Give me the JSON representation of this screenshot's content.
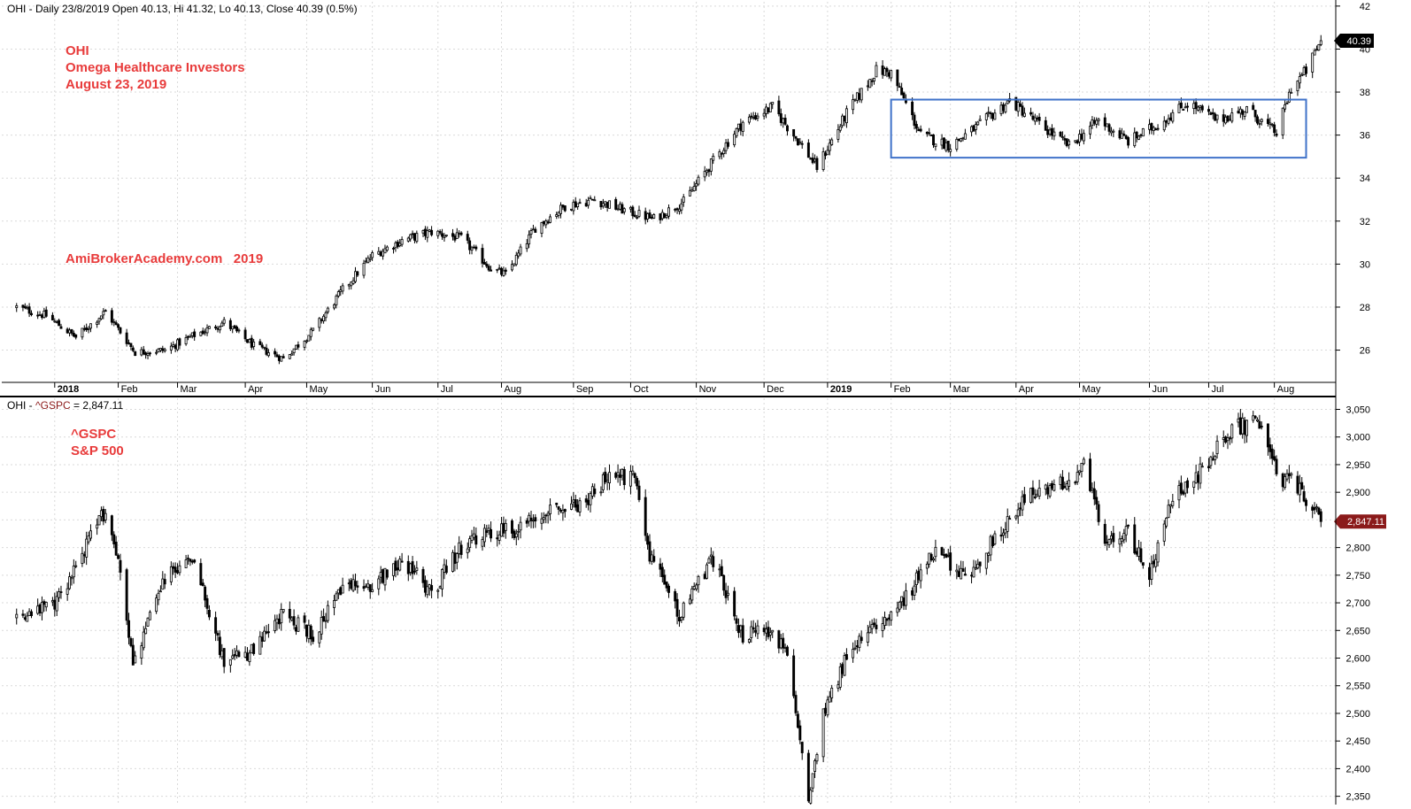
{
  "colors": {
    "background": "#ffffff",
    "grid": "#d9d9d9",
    "candle": "#000000",
    "annotation": "#e83b3b",
    "box": "#3f72c9",
    "last_price_bg": "#000000",
    "gspc_price_bg": "#8b1a1a",
    "divider": "#000000"
  },
  "chart_data": [
    {
      "type": "line",
      "chart_style": "candlestick",
      "header": "OHI - Daily 23/8/2019 Open 40.13, Hi 41.32, Lo 40.13, Close 40.39 (0.5%)",
      "annotations": [
        "OHI",
        "Omega Healthcare Investors",
        "August 23, 2019",
        "AmiBrokerAcademy.com   2019"
      ],
      "last_price_label": "40.39",
      "ylim": [
        24.5,
        42.2
      ],
      "ytick_labels": [
        "26",
        "28",
        "30",
        "32",
        "34",
        "36",
        "38",
        "40",
        "42"
      ],
      "ytick_values": [
        26,
        28,
        30,
        32,
        34,
        36,
        38,
        40,
        42
      ],
      "xtick_labels": [
        "2018",
        "Feb",
        "Mar",
        "Apr",
        "May",
        "Jun",
        "Jul",
        "Aug",
        "Sep",
        "Oct",
        "Nov",
        "Dec",
        "2019",
        "Feb",
        "Mar",
        "Apr",
        "May",
        "Jun",
        "Jul",
        "Aug"
      ],
      "xtick_dates": [
        "2018-01-02",
        "2018-02-01",
        "2018-03-01",
        "2018-04-02",
        "2018-05-01",
        "2018-06-01",
        "2018-07-02",
        "2018-08-01",
        "2018-09-04",
        "2018-10-01",
        "2018-11-01",
        "2018-12-03",
        "2019-01-02",
        "2019-02-01",
        "2019-03-01",
        "2019-04-01",
        "2019-05-01",
        "2019-06-03",
        "2019-07-01",
        "2019-08-01"
      ],
      "bold_xtick_labels": [
        "2018",
        "2019"
      ],
      "grid": true,
      "x": [
        "2017-12-15",
        "2017-12-29",
        "2018-01-12",
        "2018-01-26",
        "2018-02-09",
        "2018-02-23",
        "2018-03-09",
        "2018-03-23",
        "2018-04-06",
        "2018-04-20",
        "2018-05-04",
        "2018-05-18",
        "2018-06-01",
        "2018-06-15",
        "2018-06-29",
        "2018-07-13",
        "2018-07-27",
        "2018-08-03",
        "2018-08-17",
        "2018-08-31",
        "2018-09-14",
        "2018-09-28",
        "2018-10-12",
        "2018-10-26",
        "2018-11-09",
        "2018-11-23",
        "2018-12-07",
        "2018-12-21",
        "2018-12-28",
        "2019-01-11",
        "2019-01-25",
        "2019-02-01",
        "2019-02-15",
        "2019-03-01",
        "2019-03-15",
        "2019-03-29",
        "2019-04-12",
        "2019-04-26",
        "2019-05-10",
        "2019-05-24",
        "2019-06-07",
        "2019-06-21",
        "2019-07-05",
        "2019-07-19",
        "2019-08-02",
        "2019-08-09",
        "2019-08-16",
        "2019-08-23"
      ],
      "series": [
        {
          "values": [
            28.0,
            27.6,
            26.6,
            27.8,
            25.9,
            26.0,
            26.7,
            27.3,
            26.2,
            25.6,
            26.9,
            28.8,
            30.4,
            31.1,
            31.5,
            31.2,
            29.8,
            29.5,
            31.7,
            32.7,
            33.0,
            32.5,
            32.1,
            32.9,
            34.8,
            36.6,
            37.3,
            35.5,
            34.5,
            37.0,
            39.0,
            38.9,
            36.0,
            35.5,
            36.5,
            37.6,
            36.5,
            35.5,
            36.7,
            35.7,
            36.5,
            37.5,
            36.7,
            37.2,
            36.1,
            38.2,
            39.0,
            40.39
          ]
        }
      ],
      "highlight_box": {
        "x0": "2019-02-01",
        "x1": "2019-08-16",
        "y0": 34.95,
        "y1": 37.65
      }
    },
    {
      "type": "line",
      "chart_style": "candlestick",
      "header_prefix": "OHI - ",
      "header_symbol": "^GSPC",
      "header_value": " = 2,847.11",
      "annotations": [
        "^GSPC",
        "S&P 500"
      ],
      "last_price_label": "2,847.11",
      "ylim": [
        2335,
        3070
      ],
      "ytick_labels": [
        "2,350",
        "2,400",
        "2,450",
        "2,500",
        "2,550",
        "2,600",
        "2,650",
        "2,700",
        "2,750",
        "2,800",
        "2,850",
        "2,900",
        "2,950",
        "3,000",
        "3,050"
      ],
      "ytick_values": [
        2350,
        2400,
        2450,
        2500,
        2550,
        2600,
        2650,
        2700,
        2750,
        2800,
        2850,
        2900,
        2950,
        3000,
        3050
      ],
      "grid": true,
      "x": [
        "2017-12-15",
        "2018-01-02",
        "2018-01-26",
        "2018-02-02",
        "2018-02-08",
        "2018-02-23",
        "2018-03-09",
        "2018-03-23",
        "2018-04-06",
        "2018-04-20",
        "2018-05-04",
        "2018-05-18",
        "2018-06-01",
        "2018-06-15",
        "2018-06-29",
        "2018-07-13",
        "2018-07-27",
        "2018-08-10",
        "2018-08-24",
        "2018-09-07",
        "2018-09-21",
        "2018-10-03",
        "2018-10-10",
        "2018-10-24",
        "2018-11-09",
        "2018-11-23",
        "2018-12-07",
        "2018-12-14",
        "2018-12-24",
        "2018-12-31",
        "2019-01-11",
        "2019-01-25",
        "2019-02-08",
        "2019-02-22",
        "2019-03-08",
        "2019-03-22",
        "2019-04-05",
        "2019-04-19",
        "2019-05-03",
        "2019-05-13",
        "2019-05-24",
        "2019-06-03",
        "2019-06-14",
        "2019-06-28",
        "2019-07-12",
        "2019-07-26",
        "2019-08-02",
        "2019-08-09",
        "2019-08-16",
        "2019-08-23"
      ],
      "series": [
        {
          "values": [
            2675,
            2695,
            2870,
            2760,
            2590,
            2745,
            2786,
            2590,
            2612,
            2680,
            2640,
            2725,
            2735,
            2778,
            2720,
            2800,
            2825,
            2835,
            2875,
            2875,
            2928,
            2925,
            2790,
            2680,
            2780,
            2640,
            2650,
            2600,
            2350,
            2505,
            2600,
            2665,
            2710,
            2795,
            2745,
            2815,
            2890,
            2905,
            2945,
            2815,
            2830,
            2745,
            2890,
            2940,
            3015,
            3025,
            2930,
            2920,
            2890,
            2847.11
          ]
        }
      ]
    }
  ]
}
